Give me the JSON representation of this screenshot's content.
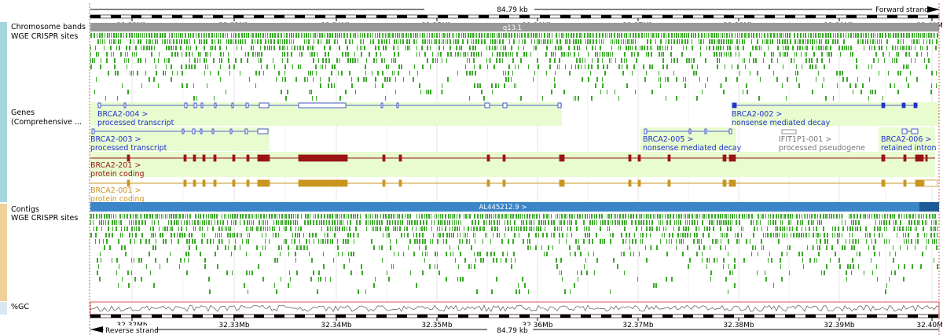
{
  "ruler": {
    "span_label": "84.79 kb",
    "forward_strand": "Forward strand",
    "reverse_strand": "Reverse strand",
    "ticks": [
      "32.32Mb",
      "32.33Mb",
      "32.34Mb",
      "32.35Mb",
      "32.36Mb",
      "32.37Mb",
      "32.38Mb",
      "32.39Mb",
      "32.40Mb"
    ]
  },
  "tracks": {
    "chromosome_bands": "Chromosome bands",
    "band_name": "q13.1",
    "wge_crispr_top": "WGE CRISPR sites",
    "genes_line1": "Genes",
    "genes_line2": "(Comprehensive ...",
    "contigs": "Contigs",
    "contig_name": "AL445212.9 >",
    "wge_crispr_bottom": "WGE CRISPR sites",
    "gc": "%GC"
  },
  "transcripts": [
    {
      "id": "BRCA2-004 >",
      "biotype": "processed transcript",
      "color": "#2233cc"
    },
    {
      "id": "BRCA2-002 >",
      "biotype": "nonsense mediated decay",
      "color": "#2233cc"
    },
    {
      "id": "BRCA2-003 >",
      "biotype": "processed transcript",
      "color": "#2233cc"
    },
    {
      "id": "BRCA2-005 >",
      "biotype": "nonsense mediated decay",
      "color": "#2233cc"
    },
    {
      "id": "IFIT1P1-001 >",
      "biotype": "processed pseudogene",
      "color": "#777777"
    },
    {
      "id": "BRCA2-006 >",
      "biotype": "retained intron",
      "color": "#2233cc"
    },
    {
      "id": "BRCA2-201 >",
      "biotype": "protein coding",
      "color": "#9b1414"
    },
    {
      "id": "BRCA2-001 >",
      "biotype": "protein coding",
      "color": "#c8961e"
    }
  ],
  "colors": {
    "crispr": "#3aa828",
    "band": "#999999",
    "contig": "#3a86c8",
    "highlight": "#e8fcd0",
    "strip_top": "#a6d5dc",
    "strip_bottom": "#f0d09a"
  }
}
